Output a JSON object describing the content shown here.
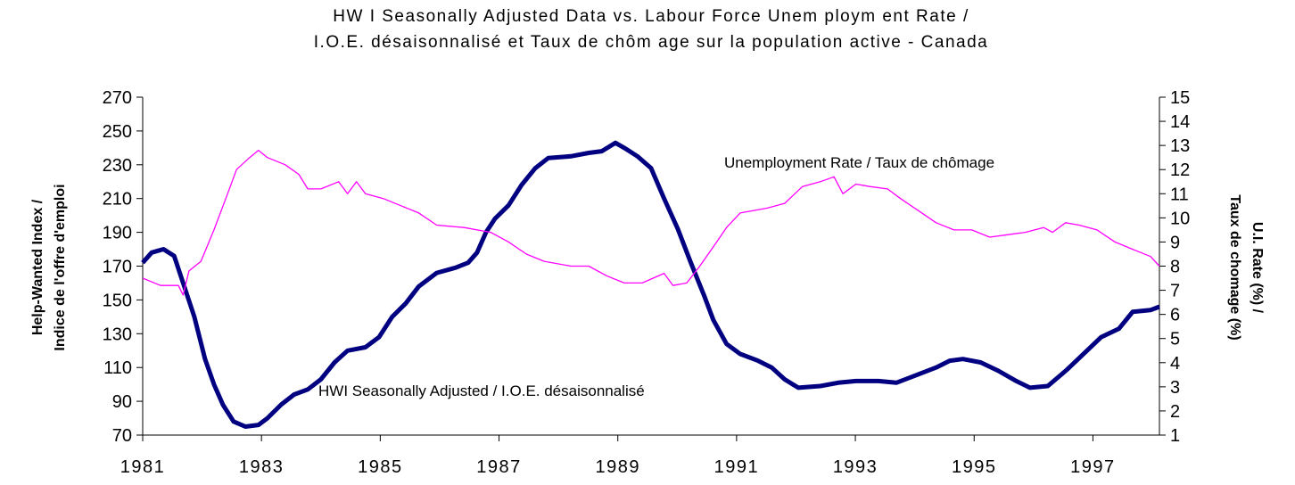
{
  "chart_data": {
    "type": "line",
    "title": "HW I Seasonally Adjusted Data vs. Labour Force Unem ploym ent Rate /",
    "subtitle": "I.O.E. désaisonnalisé et Taux de chôm age sur la population active - Canada",
    "y_label": [
      "Help-Wanted Index /",
      "Indice de l'offre d'emploi"
    ],
    "y2_label": [
      "U.I. Rate (%) /",
      "Taux de chomage (%)"
    ],
    "annotations": [
      "Unemployment Rate / Taux de chômage",
      "HWI Seasonally Adjusted / I.O.E. désaisonnalisé"
    ],
    "xlim": [
      1981,
      1998.12
    ],
    "xticks": [
      1981,
      1983,
      1985,
      1987,
      1989,
      1991,
      1993,
      1995,
      1997
    ],
    "ylim": [
      70,
      270
    ],
    "yticks": [
      70,
      90,
      110,
      130,
      150,
      170,
      190,
      210,
      230,
      250,
      270
    ],
    "y2lim": [
      1,
      15
    ],
    "y2ticks": [
      1,
      2,
      3,
      4,
      5,
      6,
      7,
      8,
      9,
      10,
      11,
      12,
      13,
      14,
      15
    ],
    "series": [
      {
        "name": "HWI Seasonally Adjusted / I.O.E. désaisonnalisé",
        "color": "#000080",
        "axis": "y",
        "x": [
          1981,
          1981.15,
          1981.35,
          1981.53,
          1981.68,
          1981.87,
          1982.05,
          1982.2,
          1982.35,
          1982.53,
          1982.73,
          1982.95,
          1983.1,
          1983.33,
          1983.55,
          1983.78,
          1984.0,
          1984.23,
          1984.45,
          1984.75,
          1984.98,
          1985.2,
          1985.43,
          1985.65,
          1985.95,
          1986.26,
          1986.48,
          1986.63,
          1986.78,
          1986.93,
          1987.16,
          1987.38,
          1987.61,
          1987.83,
          1988.21,
          1988.51,
          1988.73,
          1988.96,
          1989.11,
          1989.33,
          1989.56,
          1989.78,
          1990.01,
          1990.23,
          1990.46,
          1990.61,
          1990.83,
          1991.06,
          1991.36,
          1991.59,
          1991.81,
          1992.04,
          1992.41,
          1992.71,
          1993.01,
          1993.39,
          1993.69,
          1993.99,
          1994.36,
          1994.59,
          1994.81,
          1995.11,
          1995.41,
          1995.71,
          1995.94,
          1996.24,
          1996.54,
          1996.84,
          1997.14,
          1997.44,
          1997.67,
          1997.97,
          1998.12
        ],
        "values": [
          172,
          178,
          180,
          176,
          160,
          140,
          115,
          100,
          88,
          78,
          75,
          76,
          80,
          88,
          94,
          97,
          103,
          113,
          120,
          122,
          128,
          140,
          148,
          158,
          166,
          169,
          172,
          178,
          190,
          198,
          206,
          218,
          228,
          234,
          235,
          237,
          238,
          243,
          240,
          235,
          228,
          210,
          192,
          172,
          152,
          138,
          124,
          118,
          114,
          110,
          103,
          98,
          99,
          101,
          102,
          102,
          101,
          105,
          110,
          114,
          115,
          113,
          108,
          102,
          98,
          99,
          108,
          118,
          128,
          133,
          143,
          144,
          146
        ]
      },
      {
        "name": "Unemployment Rate / Taux de chômage",
        "color": "#ff00ff",
        "axis": "y2",
        "x": [
          1981,
          1981.3,
          1981.6,
          1981.68,
          1981.78,
          1981.98,
          1982.2,
          1982.43,
          1982.58,
          1982.8,
          1982.95,
          1983.1,
          1983.4,
          1983.63,
          1983.78,
          1984.0,
          1984.3,
          1984.45,
          1984.6,
          1984.75,
          1985.05,
          1985.35,
          1985.65,
          1985.95,
          1986.41,
          1986.86,
          1987.16,
          1987.46,
          1987.76,
          1988.21,
          1988.51,
          1988.81,
          1989.11,
          1989.41,
          1989.78,
          1989.93,
          1990.16,
          1990.38,
          1990.61,
          1990.83,
          1991.06,
          1991.51,
          1991.81,
          1992.11,
          1992.41,
          1992.64,
          1992.79,
          1993.01,
          1993.24,
          1993.54,
          1993.76,
          1994.06,
          1994.36,
          1994.66,
          1994.96,
          1995.26,
          1995.56,
          1995.86,
          1996.17,
          1996.32,
          1996.54,
          1996.77,
          1997.07,
          1997.37,
          1997.67,
          1997.97,
          1998.12
        ],
        "values": [
          7.5,
          7.2,
          7.2,
          6.8,
          7.8,
          8.2,
          9.5,
          11,
          12,
          12.5,
          12.8,
          12.5,
          12.2,
          11.8,
          11.2,
          11.2,
          11.5,
          11,
          11.5,
          11,
          10.8,
          10.5,
          10.2,
          9.7,
          9.6,
          9.4,
          9,
          8.5,
          8.2,
          8,
          8,
          7.6,
          7.3,
          7.3,
          7.7,
          7.2,
          7.3,
          8,
          8.8,
          9.6,
          10.2,
          10.4,
          10.6,
          11.3,
          11.5,
          11.7,
          11,
          11.4,
          11.3,
          11.2,
          10.8,
          10.3,
          9.8,
          9.5,
          9.5,
          9.2,
          9.3,
          9.4,
          9.6,
          9.4,
          9.8,
          9.7,
          9.5,
          9,
          8.7,
          8.4,
          8
        ]
      }
    ]
  }
}
